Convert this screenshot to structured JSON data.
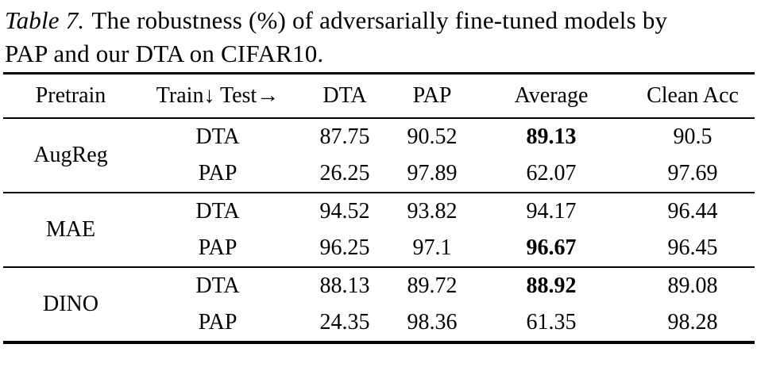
{
  "caption": {
    "label": "Table 7.",
    "line1": "The robustness (%) of adversarially fine-tuned models by",
    "line2": "PAP and our DTA on CIFAR10."
  },
  "table": {
    "headers": [
      "Pretrain",
      "Train↓ Test→",
      "DTA",
      "PAP",
      "Average",
      "Clean Acc"
    ],
    "groups": [
      {
        "pretrain": "AugReg",
        "rows": [
          {
            "train": "DTA",
            "values": [
              "87.75",
              "90.52",
              "89.13",
              "90.5"
            ],
            "bold_value": "89.13"
          },
          {
            "train": "PAP",
            "values": [
              "26.25",
              "97.89",
              "62.07",
              "97.69"
            ],
            "bold_value": null
          }
        ]
      },
      {
        "pretrain": "MAE",
        "rows": [
          {
            "train": "DTA",
            "values": [
              "94.52",
              "93.82",
              "94.17",
              "96.44"
            ],
            "bold_value": null
          },
          {
            "train": "PAP",
            "values": [
              "96.25",
              "97.1",
              "96.67",
              "96.45"
            ],
            "bold_value": "96.67"
          }
        ]
      },
      {
        "pretrain": "DINO",
        "rows": [
          {
            "train": "DTA",
            "values": [
              "88.13",
              "89.72",
              "88.92",
              "89.08"
            ],
            "bold_value": "88.92"
          },
          {
            "train": "PAP",
            "values": [
              "24.35",
              "98.36",
              "61.35",
              "98.28"
            ],
            "bold_value": null
          }
        ]
      }
    ]
  },
  "colors": {
    "text": "#000000",
    "background": "#ffffff",
    "rule": "#000000"
  }
}
